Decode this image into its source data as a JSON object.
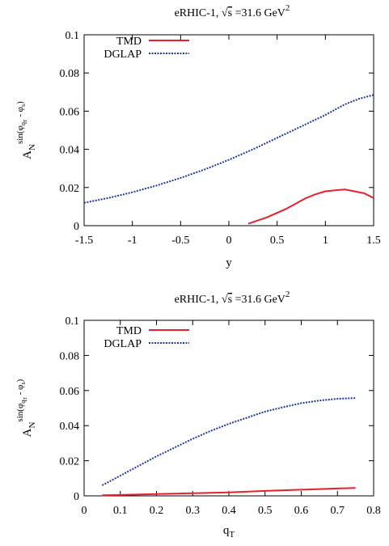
{
  "chart_data": [
    {
      "type": "line",
      "title": {
        "prefix": "eRHIC-1, ",
        "sqrt": "√",
        "sqrt_arg": "s",
        "suffix": " =31.6 GeV",
        "sup": "2"
      },
      "ylabel": {
        "main": "A",
        "sub": "N",
        "sup_pre": "sin(φ",
        "sup_sub1": "q",
        "sup_sub2": "T",
        "sup_mid": " - φ",
        "sup_sub3": "s",
        "sup_post": ")"
      },
      "xlabel": {
        "main": "y",
        "sub": ""
      },
      "xlim": [
        -1.5,
        1.5
      ],
      "ylim": [
        0,
        0.1
      ],
      "xticks": [
        "-1.5",
        "-1",
        "-0.5",
        "0",
        "0.5",
        "1",
        "1.5"
      ],
      "yticks": [
        "0",
        "0.02",
        "0.04",
        "0.06",
        "0.08",
        "0.1"
      ],
      "legend": "top-left",
      "series": [
        {
          "name": "TMD",
          "style": "solid",
          "color": "#e8202a",
          "points": [
            [
              0.2,
              0.001
            ],
            [
              0.4,
              0.0045
            ],
            [
              0.6,
              0.009
            ],
            [
              0.8,
              0.0145
            ],
            [
              0.9,
              0.0165
            ],
            [
              1.0,
              0.018
            ],
            [
              1.1,
              0.0185
            ],
            [
              1.2,
              0.019
            ],
            [
              1.3,
              0.018
            ],
            [
              1.4,
              0.017
            ],
            [
              1.5,
              0.0145
            ]
          ]
        },
        {
          "name": "DGLAP",
          "style": "dotted",
          "color": "#1a3a9e",
          "points": [
            [
              -1.5,
              0.012
            ],
            [
              -1.25,
              0.0145
            ],
            [
              -1.0,
              0.0175
            ],
            [
              -0.75,
              0.021
            ],
            [
              -0.5,
              0.025
            ],
            [
              -0.25,
              0.0295
            ],
            [
              0.0,
              0.0345
            ],
            [
              0.25,
              0.04
            ],
            [
              0.5,
              0.046
            ],
            [
              0.75,
              0.052
            ],
            [
              1.0,
              0.058
            ],
            [
              1.2,
              0.0635
            ],
            [
              1.35,
              0.0665
            ],
            [
              1.5,
              0.0685
            ]
          ]
        }
      ]
    },
    {
      "type": "line",
      "title": {
        "prefix": "eRHIC-1, ",
        "sqrt": "√",
        "sqrt_arg": "s",
        "suffix": " =31.6 GeV",
        "sup": "2"
      },
      "ylabel": {
        "main": "A",
        "sub": "N",
        "sup_pre": "sin(φ",
        "sup_sub1": "q",
        "sup_sub2": "T",
        "sup_mid": " - φ",
        "sup_sub3": "s",
        "sup_post": ")"
      },
      "xlabel": {
        "main": "q",
        "sub": "T"
      },
      "xlim": [
        0,
        0.8
      ],
      "ylim": [
        0,
        0.1
      ],
      "xticks": [
        "0",
        "0.1",
        "0.2",
        "0.3",
        "0.4",
        "0.5",
        "0.6",
        "0.7",
        "0.8"
      ],
      "yticks": [
        "0",
        "0.02",
        "0.04",
        "0.06",
        "0.08",
        "0.1"
      ],
      "legend": "top-left",
      "series": [
        {
          "name": "TMD",
          "style": "solid",
          "color": "#e8202a",
          "points": [
            [
              0.05,
              0.0003
            ],
            [
              0.1,
              0.0005
            ],
            [
              0.2,
              0.001
            ],
            [
              0.3,
              0.0015
            ],
            [
              0.4,
              0.002
            ],
            [
              0.5,
              0.0028
            ],
            [
              0.6,
              0.0035
            ],
            [
              0.7,
              0.0042
            ],
            [
              0.75,
              0.0045
            ]
          ]
        },
        {
          "name": "DGLAP",
          "style": "dotted",
          "color": "#1a3a9e",
          "points": [
            [
              0.05,
              0.006
            ],
            [
              0.1,
              0.0115
            ],
            [
              0.15,
              0.017
            ],
            [
              0.2,
              0.0225
            ],
            [
              0.25,
              0.0275
            ],
            [
              0.3,
              0.0325
            ],
            [
              0.35,
              0.037
            ],
            [
              0.4,
              0.041
            ],
            [
              0.45,
              0.0445
            ],
            [
              0.5,
              0.048
            ],
            [
              0.55,
              0.0505
            ],
            [
              0.6,
              0.0528
            ],
            [
              0.65,
              0.0543
            ],
            [
              0.7,
              0.0553
            ],
            [
              0.75,
              0.0557
            ]
          ]
        }
      ]
    }
  ]
}
